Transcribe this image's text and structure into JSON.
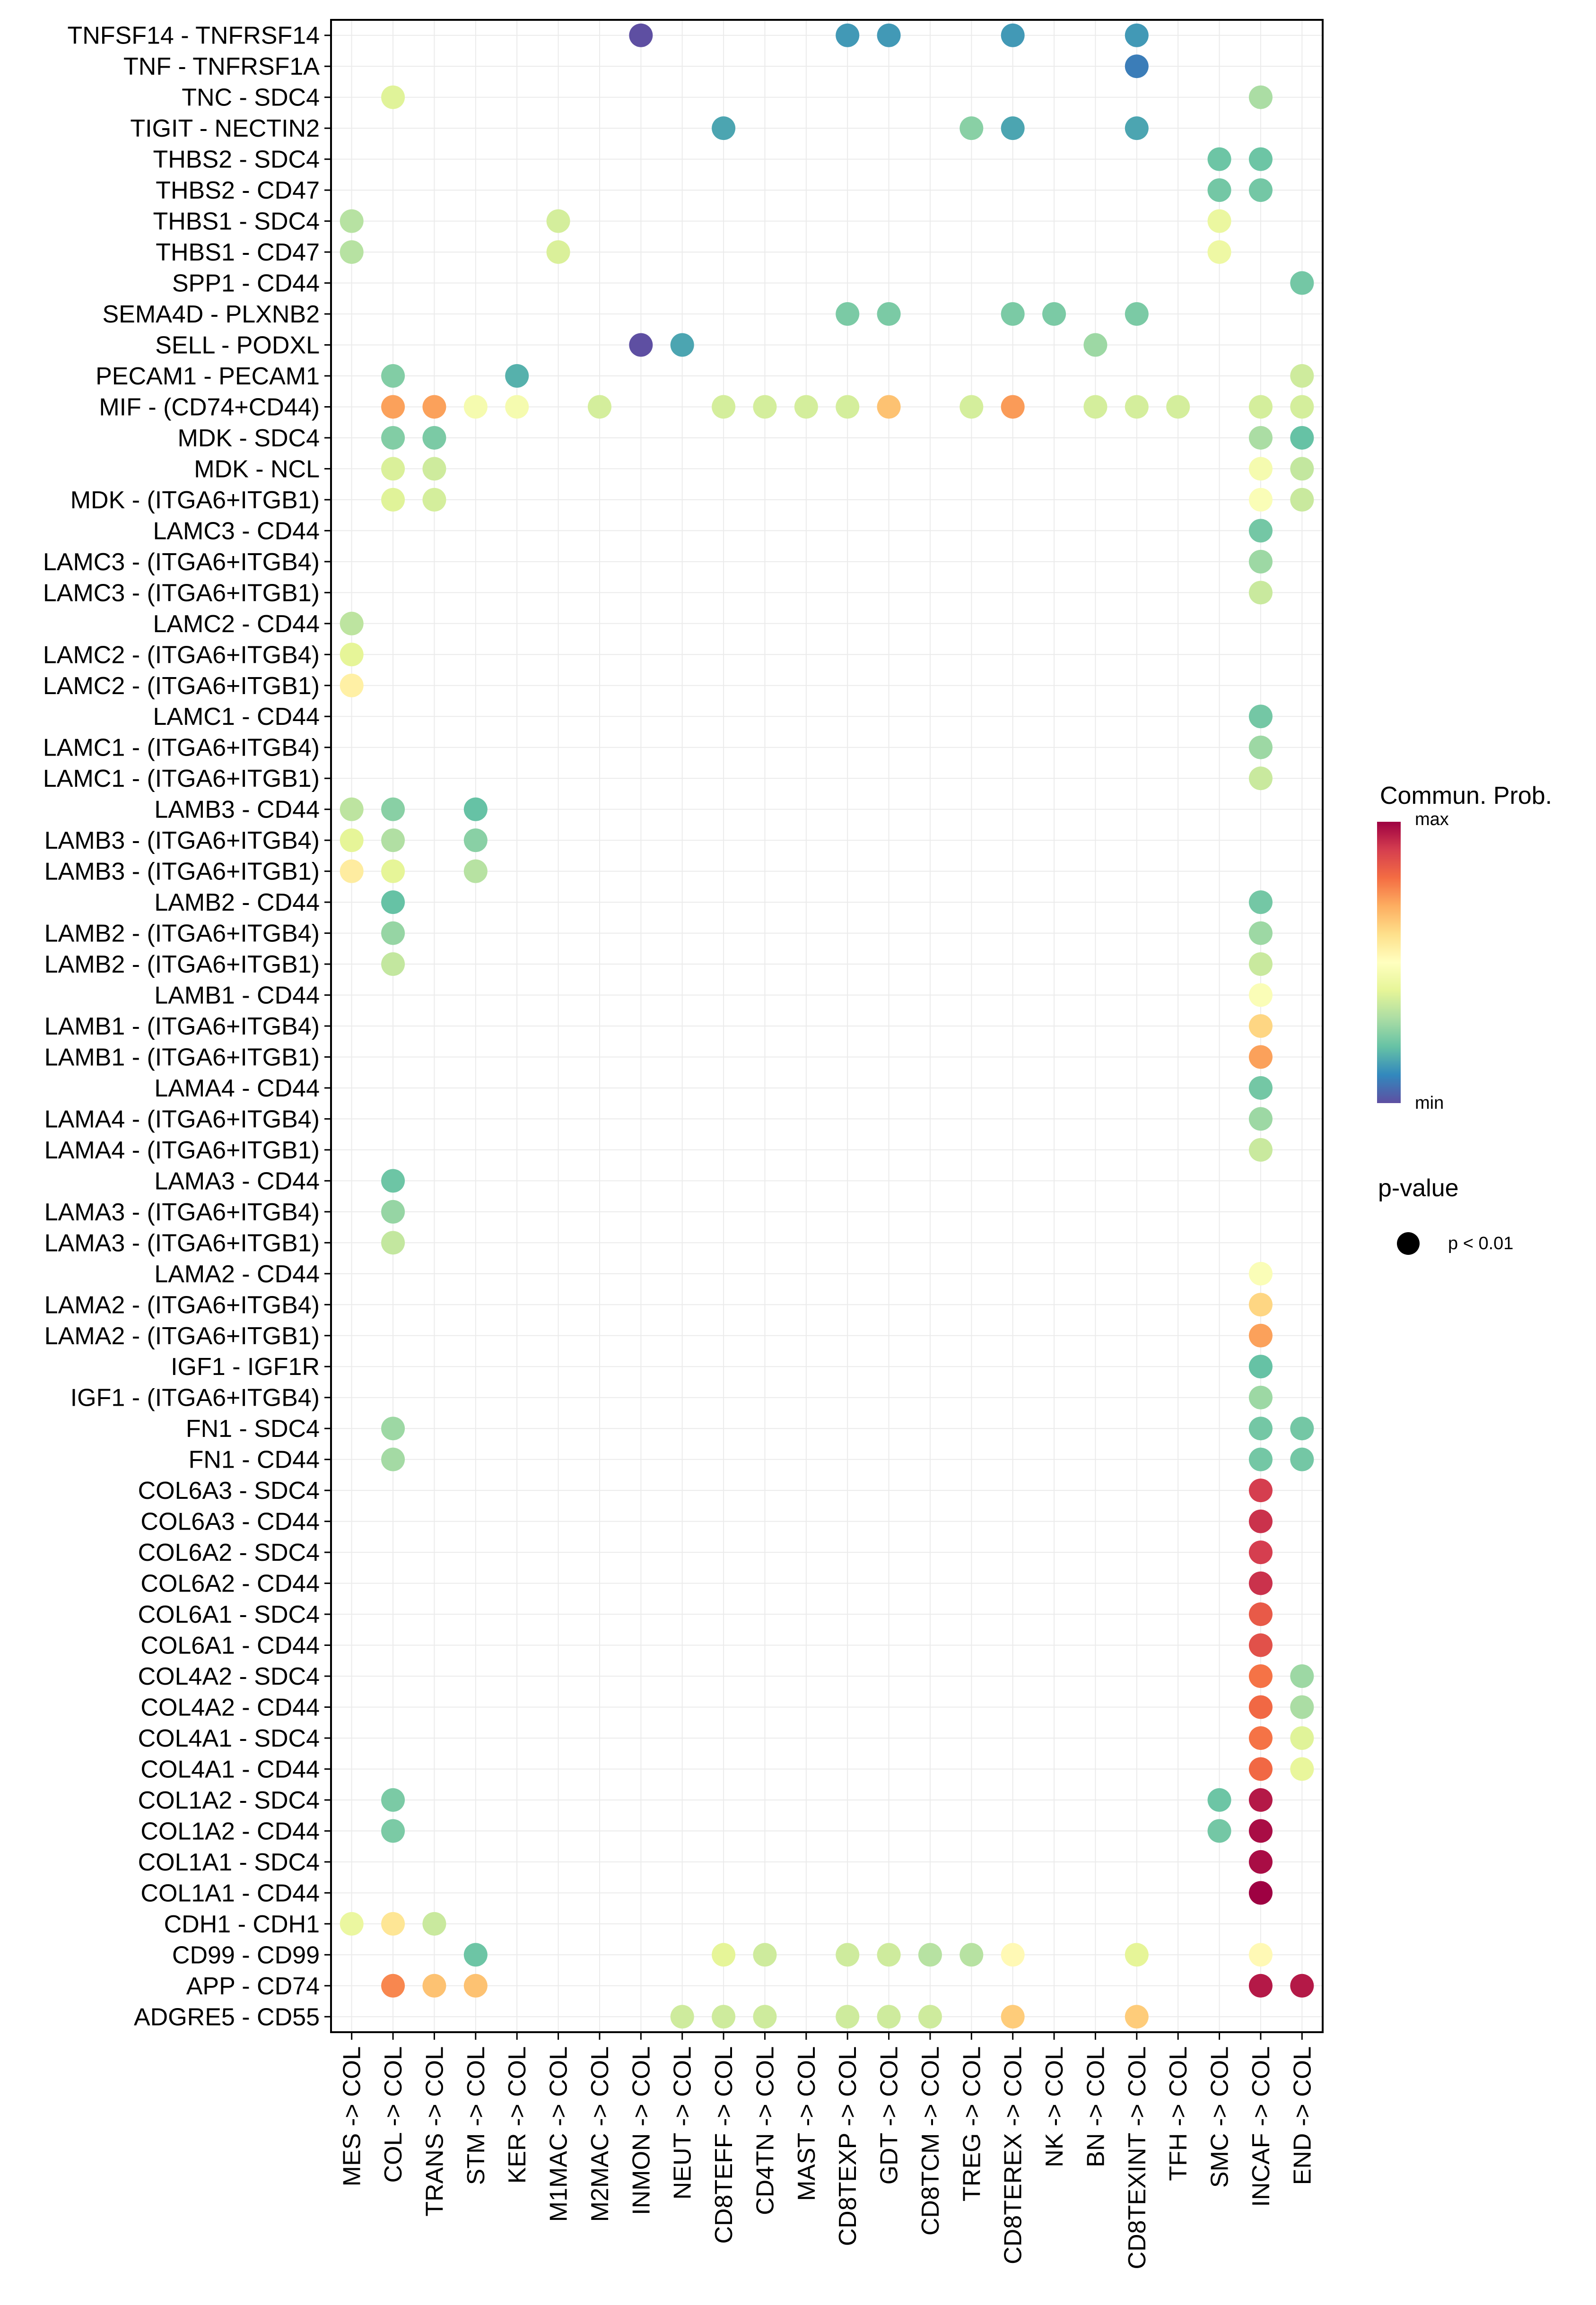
{
  "chart_data": {
    "type": "scatter",
    "subtype": "dot-plot",
    "title": "",
    "xlabel": "",
    "ylabel": "",
    "grid": true,
    "legend_placement": "right",
    "value_scale": "relative (0 = min, 1 = max), estimated from color",
    "colormap": {
      "name": "Spectral (reversed)",
      "stops": [
        "#5E4FA2",
        "#3288BD",
        "#66C2A5",
        "#ABDDA4",
        "#E6F598",
        "#FFFFBF",
        "#FEE08B",
        "#FDAE61",
        "#F46D43",
        "#D53E4F",
        "#9E0142"
      ]
    },
    "legend": {
      "color_title": "Commun. Prob.",
      "color_max_label": "max",
      "color_min_label": "min",
      "size_title": "p-value",
      "size_entry_label": "p < 0.01"
    },
    "x_categories": [
      "MES -> COL",
      "COL -> COL",
      "TRANS -> COL",
      "STM -> COL",
      "KER -> COL",
      "M1MAC -> COL",
      "M2MAC -> COL",
      "INMON -> COL",
      "NEUT -> COL",
      "CD8TEFF -> COL",
      "CD4TN -> COL",
      "MAST -> COL",
      "CD8TEXP -> COL",
      "GDT -> COL",
      "CD8TCM -> COL",
      "TREG -> COL",
      "CD8TEREX -> COL",
      "NK -> COL",
      "BN -> COL",
      "CD8TEXINT -> COL",
      "TFH -> COL",
      "SMC -> COL",
      "INCAF -> COL",
      "END -> COL"
    ],
    "y_categories": [
      "TNFSF14 - TNFRSF14",
      "TNF - TNFRSF1A",
      "TNC - SDC4",
      "TIGIT - NECTIN2",
      "THBS2 - SDC4",
      "THBS2 - CD47",
      "THBS1 - SDC4",
      "THBS1 - CD47",
      "SPP1 - CD44",
      "SEMA4D - PLXNB2",
      "SELL - PODXL",
      "PECAM1 - PECAM1",
      "MIF - (CD74+CD44)",
      "MDK - SDC4",
      "MDK - NCL",
      "MDK - (ITGA6+ITGB1)",
      "LAMC3 - CD44",
      "LAMC3 - (ITGA6+ITGB4)",
      "LAMC3 - (ITGA6+ITGB1)",
      "LAMC2 - CD44",
      "LAMC2 - (ITGA6+ITGB4)",
      "LAMC2 - (ITGA6+ITGB1)",
      "LAMC1 - CD44",
      "LAMC1 - (ITGA6+ITGB4)",
      "LAMC1 - (ITGA6+ITGB1)",
      "LAMB3 - CD44",
      "LAMB3 - (ITGA6+ITGB4)",
      "LAMB3 - (ITGA6+ITGB1)",
      "LAMB2 - CD44",
      "LAMB2 - (ITGA6+ITGB4)",
      "LAMB2 - (ITGA6+ITGB1)",
      "LAMB1 - CD44",
      "LAMB1 - (ITGA6+ITGB4)",
      "LAMB1 - (ITGA6+ITGB1)",
      "LAMA4 - CD44",
      "LAMA4 - (ITGA6+ITGB4)",
      "LAMA4 - (ITGA6+ITGB1)",
      "LAMA3 - CD44",
      "LAMA3 - (ITGA6+ITGB4)",
      "LAMA3 - (ITGA6+ITGB1)",
      "LAMA2 - CD44",
      "LAMA2 - (ITGA6+ITGB4)",
      "LAMA2 - (ITGA6+ITGB1)",
      "IGF1 - IGF1R",
      "IGF1 - (ITGA6+ITGB4)",
      "FN1 - SDC4",
      "FN1 - CD44",
      "COL6A3 - SDC4",
      "COL6A3 - CD44",
      "COL6A2 - SDC4",
      "COL6A2 - CD44",
      "COL6A1 - SDC4",
      "COL6A1 - CD44",
      "COL4A2 - SDC4",
      "COL4A2 - CD44",
      "COL4A1 - SDC4",
      "COL4A1 - CD44",
      "COL1A2 - SDC4",
      "COL1A2 - CD44",
      "COL1A1 - SDC4",
      "COL1A1 - CD44",
      "CDH1 - CDH1",
      "CD99 - CD99",
      "APP - CD74",
      "ADGRE5 - CD55"
    ],
    "points": [
      {
        "y": "TNFSF14 - TNFRSF14",
        "x": "INMON -> COL",
        "value": 0.0
      },
      {
        "y": "TNFSF14 - TNFRSF14",
        "x": "CD8TEXP -> COL",
        "value": 0.13
      },
      {
        "y": "TNFSF14 - TNFRSF14",
        "x": "GDT -> COL",
        "value": 0.13
      },
      {
        "y": "TNFSF14 - TNFRSF14",
        "x": "CD8TEREX -> COL",
        "value": 0.13
      },
      {
        "y": "TNFSF14 - TNFRSF14",
        "x": "CD8TEXINT -> COL",
        "value": 0.13
      },
      {
        "y": "TNF - TNFRSF1A",
        "x": "CD8TEXINT -> COL",
        "value": 0.08
      },
      {
        "y": "TNC - SDC4",
        "x": "COL -> COL",
        "value": 0.39
      },
      {
        "y": "TNC - SDC4",
        "x": "INCAF -> COL",
        "value": 0.3
      },
      {
        "y": "TIGIT - NECTIN2",
        "x": "CD8TEFF -> COL",
        "value": 0.15
      },
      {
        "y": "TIGIT - NECTIN2",
        "x": "TREG -> COL",
        "value": 0.25
      },
      {
        "y": "TIGIT - NECTIN2",
        "x": "CD8TEREX -> COL",
        "value": 0.15
      },
      {
        "y": "TIGIT - NECTIN2",
        "x": "CD8TEXINT -> COL",
        "value": 0.15
      },
      {
        "y": "THBS2 - SDC4",
        "x": "SMC -> COL",
        "value": 0.21
      },
      {
        "y": "THBS2 - SDC4",
        "x": "INCAF -> COL",
        "value": 0.21
      },
      {
        "y": "THBS2 - CD47",
        "x": "SMC -> COL",
        "value": 0.22
      },
      {
        "y": "THBS2 - CD47",
        "x": "INCAF -> COL",
        "value": 0.22
      },
      {
        "y": "THBS1 - SDC4",
        "x": "MES -> COL",
        "value": 0.32
      },
      {
        "y": "THBS1 - SDC4",
        "x": "M1MAC -> COL",
        "value": 0.37
      },
      {
        "y": "THBS1 - SDC4",
        "x": "SMC -> COL",
        "value": 0.42
      },
      {
        "y": "THBS1 - CD47",
        "x": "MES -> COL",
        "value": 0.32
      },
      {
        "y": "THBS1 - CD47",
        "x": "M1MAC -> COL",
        "value": 0.38
      },
      {
        "y": "THBS1 - CD47",
        "x": "SMC -> COL",
        "value": 0.43
      },
      {
        "y": "SPP1 - CD44",
        "x": "END -> COL",
        "value": 0.22
      },
      {
        "y": "SEMA4D - PLXNB2",
        "x": "CD8TEXP -> COL",
        "value": 0.23
      },
      {
        "y": "SEMA4D - PLXNB2",
        "x": "GDT -> COL",
        "value": 0.23
      },
      {
        "y": "SEMA4D - PLXNB2",
        "x": "CD8TEREX -> COL",
        "value": 0.23
      },
      {
        "y": "SEMA4D - PLXNB2",
        "x": "NK -> COL",
        "value": 0.23
      },
      {
        "y": "SEMA4D - PLXNB2",
        "x": "CD8TEXINT -> COL",
        "value": 0.23
      },
      {
        "y": "SELL - PODXL",
        "x": "INMON -> COL",
        "value": 0.0
      },
      {
        "y": "SELL - PODXL",
        "x": "NEUT -> COL",
        "value": 0.15
      },
      {
        "y": "SELL - PODXL",
        "x": "BN -> COL",
        "value": 0.28
      },
      {
        "y": "PECAM1 - PECAM1",
        "x": "COL -> COL",
        "value": 0.24
      },
      {
        "y": "PECAM1 - PECAM1",
        "x": "KER -> COL",
        "value": 0.17
      },
      {
        "y": "PECAM1 - PECAM1",
        "x": "END -> COL",
        "value": 0.36
      },
      {
        "y": "MIF - (CD74+CD44)",
        "x": "COL -> COL",
        "value": 0.72
      },
      {
        "y": "MIF - (CD74+CD44)",
        "x": "TRANS -> COL",
        "value": 0.72
      },
      {
        "y": "MIF - (CD74+CD44)",
        "x": "STM -> COL",
        "value": 0.46
      },
      {
        "y": "MIF - (CD74+CD44)",
        "x": "KER -> COL",
        "value": 0.46
      },
      {
        "y": "MIF - (CD74+CD44)",
        "x": "M2MAC -> COL",
        "value": 0.37
      },
      {
        "y": "MIF - (CD74+CD44)",
        "x": "CD8TEFF -> COL",
        "value": 0.37
      },
      {
        "y": "MIF - (CD74+CD44)",
        "x": "CD4TN -> COL",
        "value": 0.37
      },
      {
        "y": "MIF - (CD74+CD44)",
        "x": "MAST -> COL",
        "value": 0.37
      },
      {
        "y": "MIF - (CD74+CD44)",
        "x": "CD8TEXP -> COL",
        "value": 0.37
      },
      {
        "y": "MIF - (CD74+CD44)",
        "x": "GDT -> COL",
        "value": 0.66
      },
      {
        "y": "MIF - (CD74+CD44)",
        "x": "TREG -> COL",
        "value": 0.37
      },
      {
        "y": "MIF - (CD74+CD44)",
        "x": "CD8TEREX -> COL",
        "value": 0.73
      },
      {
        "y": "MIF - (CD74+CD44)",
        "x": "BN -> COL",
        "value": 0.37
      },
      {
        "y": "MIF - (CD74+CD44)",
        "x": "CD8TEXINT -> COL",
        "value": 0.37
      },
      {
        "y": "MIF - (CD74+CD44)",
        "x": "TFH -> COL",
        "value": 0.37
      },
      {
        "y": "MIF - (CD74+CD44)",
        "x": "INCAF -> COL",
        "value": 0.37
      },
      {
        "y": "MIF - (CD74+CD44)",
        "x": "END -> COL",
        "value": 0.37
      },
      {
        "y": "MDK - SDC4",
        "x": "COL -> COL",
        "value": 0.24
      },
      {
        "y": "MDK - SDC4",
        "x": "TRANS -> COL",
        "value": 0.23
      },
      {
        "y": "MDK - SDC4",
        "x": "INCAF -> COL",
        "value": 0.3
      },
      {
        "y": "MDK - SDC4",
        "x": "END -> COL",
        "value": 0.2
      },
      {
        "y": "MDK - NCL",
        "x": "COL -> COL",
        "value": 0.38
      },
      {
        "y": "MDK - NCL",
        "x": "TRANS -> COL",
        "value": 0.36
      },
      {
        "y": "MDK - NCL",
        "x": "INCAF -> COL",
        "value": 0.46
      },
      {
        "y": "MDK - NCL",
        "x": "END -> COL",
        "value": 0.34
      },
      {
        "y": "MDK - (ITGA6+ITGB1)",
        "x": "COL -> COL",
        "value": 0.39
      },
      {
        "y": "MDK - (ITGA6+ITGB1)",
        "x": "TRANS -> COL",
        "value": 0.37
      },
      {
        "y": "MDK - (ITGA6+ITGB1)",
        "x": "INCAF -> COL",
        "value": 0.48
      },
      {
        "y": "MDK - (ITGA6+ITGB1)",
        "x": "END -> COL",
        "value": 0.35
      },
      {
        "y": "LAMC3 - CD44",
        "x": "INCAF -> COL",
        "value": 0.22
      },
      {
        "y": "LAMC3 - (ITGA6+ITGB4)",
        "x": "INCAF -> COL",
        "value": 0.28
      },
      {
        "y": "LAMC3 - (ITGA6+ITGB1)",
        "x": "INCAF -> COL",
        "value": 0.35
      },
      {
        "y": "LAMC2 - CD44",
        "x": "MES -> COL",
        "value": 0.33
      },
      {
        "y": "LAMC2 - (ITGA6+ITGB4)",
        "x": "MES -> COL",
        "value": 0.4
      },
      {
        "y": "LAMC2 - (ITGA6+ITGB1)",
        "x": "MES -> COL",
        "value": 0.55
      },
      {
        "y": "LAMC1 - CD44",
        "x": "INCAF -> COL",
        "value": 0.22
      },
      {
        "y": "LAMC1 - (ITGA6+ITGB4)",
        "x": "INCAF -> COL",
        "value": 0.28
      },
      {
        "y": "LAMC1 - (ITGA6+ITGB1)",
        "x": "INCAF -> COL",
        "value": 0.35
      },
      {
        "y": "LAMB3 - CD44",
        "x": "MES -> COL",
        "value": 0.33
      },
      {
        "y": "LAMB3 - CD44",
        "x": "COL -> COL",
        "value": 0.25
      },
      {
        "y": "LAMB3 - CD44",
        "x": "STM -> COL",
        "value": 0.2
      },
      {
        "y": "LAMB3 - (ITGA6+ITGB4)",
        "x": "MES -> COL",
        "value": 0.4
      },
      {
        "y": "LAMB3 - (ITGA6+ITGB4)",
        "x": "COL -> COL",
        "value": 0.31
      },
      {
        "y": "LAMB3 - (ITGA6+ITGB4)",
        "x": "STM -> COL",
        "value": 0.25
      },
      {
        "y": "LAMB3 - (ITGA6+ITGB1)",
        "x": "MES -> COL",
        "value": 0.56
      },
      {
        "y": "LAMB3 - (ITGA6+ITGB1)",
        "x": "COL -> COL",
        "value": 0.4
      },
      {
        "y": "LAMB3 - (ITGA6+ITGB1)",
        "x": "STM -> COL",
        "value": 0.32
      },
      {
        "y": "LAMB2 - CD44",
        "x": "COL -> COL",
        "value": 0.2
      },
      {
        "y": "LAMB2 - (ITGA6+ITGB4)",
        "x": "COL -> COL",
        "value": 0.27
      },
      {
        "y": "LAMB2 - (ITGA6+ITGB1)",
        "x": "COL -> COL",
        "value": 0.34
      },
      {
        "y": "LAMB2 - CD44",
        "x": "INCAF -> COL",
        "value": 0.22
      },
      {
        "y": "LAMB2 - (ITGA6+ITGB4)",
        "x": "INCAF -> COL",
        "value": 0.28
      },
      {
        "y": "LAMB2 - (ITGA6+ITGB1)",
        "x": "INCAF -> COL",
        "value": 0.35
      },
      {
        "y": "LAMB1 - CD44",
        "x": "INCAF -> COL",
        "value": 0.48
      },
      {
        "y": "LAMB1 - (ITGA6+ITGB4)",
        "x": "INCAF -> COL",
        "value": 0.62
      },
      {
        "y": "LAMB1 - (ITGA6+ITGB1)",
        "x": "INCAF -> COL",
        "value": 0.72
      },
      {
        "y": "LAMA4 - CD44",
        "x": "INCAF -> COL",
        "value": 0.22
      },
      {
        "y": "LAMA4 - (ITGA6+ITGB4)",
        "x": "INCAF -> COL",
        "value": 0.28
      },
      {
        "y": "LAMA4 - (ITGA6+ITGB1)",
        "x": "INCAF -> COL",
        "value": 0.35
      },
      {
        "y": "LAMA3 - CD44",
        "x": "COL -> COL",
        "value": 0.21
      },
      {
        "y": "LAMA3 - (ITGA6+ITGB4)",
        "x": "COL -> COL",
        "value": 0.27
      },
      {
        "y": "LAMA3 - (ITGA6+ITGB1)",
        "x": "COL -> COL",
        "value": 0.34
      },
      {
        "y": "LAMA2 - CD44",
        "x": "INCAF -> COL",
        "value": 0.48
      },
      {
        "y": "LAMA2 - (ITGA6+ITGB4)",
        "x": "INCAF -> COL",
        "value": 0.62
      },
      {
        "y": "LAMA2 - (ITGA6+ITGB1)",
        "x": "INCAF -> COL",
        "value": 0.72
      },
      {
        "y": "IGF1 - IGF1R",
        "x": "INCAF -> COL",
        "value": 0.2
      },
      {
        "y": "IGF1 - (ITGA6+ITGB4)",
        "x": "INCAF -> COL",
        "value": 0.28
      },
      {
        "y": "FN1 - SDC4",
        "x": "COL -> COL",
        "value": 0.28
      },
      {
        "y": "FN1 - SDC4",
        "x": "INCAF -> COL",
        "value": 0.22
      },
      {
        "y": "FN1 - SDC4",
        "x": "END -> COL",
        "value": 0.22
      },
      {
        "y": "FN1 - CD44",
        "x": "COL -> COL",
        "value": 0.29
      },
      {
        "y": "FN1 - CD44",
        "x": "INCAF -> COL",
        "value": 0.22
      },
      {
        "y": "FN1 - CD44",
        "x": "END -> COL",
        "value": 0.22
      },
      {
        "y": "COL6A3 - SDC4",
        "x": "INCAF -> COL",
        "value": 0.9
      },
      {
        "y": "COL6A3 - CD44",
        "x": "INCAF -> COL",
        "value": 0.92
      },
      {
        "y": "COL6A2 - SDC4",
        "x": "INCAF -> COL",
        "value": 0.9
      },
      {
        "y": "COL6A2 - CD44",
        "x": "INCAF -> COL",
        "value": 0.92
      },
      {
        "y": "COL6A1 - SDC4",
        "x": "INCAF -> COL",
        "value": 0.84
      },
      {
        "y": "COL6A1 - CD44",
        "x": "INCAF -> COL",
        "value": 0.86
      },
      {
        "y": "COL4A2 - SDC4",
        "x": "INCAF -> COL",
        "value": 0.79
      },
      {
        "y": "COL4A2 - SDC4",
        "x": "END -> COL",
        "value": 0.28
      },
      {
        "y": "COL4A2 - CD44",
        "x": "INCAF -> COL",
        "value": 0.81
      },
      {
        "y": "COL4A2 - CD44",
        "x": "END -> COL",
        "value": 0.3
      },
      {
        "y": "COL4A1 - SDC4",
        "x": "INCAF -> COL",
        "value": 0.79
      },
      {
        "y": "COL4A1 - SDC4",
        "x": "END -> COL",
        "value": 0.39
      },
      {
        "y": "COL4A1 - CD44",
        "x": "INCAF -> COL",
        "value": 0.81
      },
      {
        "y": "COL4A1 - CD44",
        "x": "END -> COL",
        "value": 0.41
      },
      {
        "y": "COL1A2 - SDC4",
        "x": "COL -> COL",
        "value": 0.23
      },
      {
        "y": "COL1A2 - SDC4",
        "x": "SMC -> COL",
        "value": 0.21
      },
      {
        "y": "COL1A2 - SDC4",
        "x": "INCAF -> COL",
        "value": 0.96
      },
      {
        "y": "COL1A2 - CD44",
        "x": "COL -> COL",
        "value": 0.23
      },
      {
        "y": "COL1A2 - CD44",
        "x": "SMC -> COL",
        "value": 0.22
      },
      {
        "y": "COL1A2 - CD44",
        "x": "INCAF -> COL",
        "value": 0.98
      },
      {
        "y": "COL1A1 - SDC4",
        "x": "INCAF -> COL",
        "value": 0.98
      },
      {
        "y": "COL1A1 - CD44",
        "x": "INCAF -> COL",
        "value": 1.0
      },
      {
        "y": "CDH1 - CDH1",
        "x": "MES -> COL",
        "value": 0.42
      },
      {
        "y": "CDH1 - CDH1",
        "x": "COL -> COL",
        "value": 0.58
      },
      {
        "y": "CDH1 - CDH1",
        "x": "TRANS -> COL",
        "value": 0.35
      },
      {
        "y": "CD99 - CD99",
        "x": "STM -> COL",
        "value": 0.21
      },
      {
        "y": "CD99 - CD99",
        "x": "CD8TEFF -> COL",
        "value": 0.4
      },
      {
        "y": "CD99 - CD99",
        "x": "CD4TN -> COL",
        "value": 0.36
      },
      {
        "y": "CD99 - CD99",
        "x": "CD8TEXP -> COL",
        "value": 0.36
      },
      {
        "y": "CD99 - CD99",
        "x": "GDT -> COL",
        "value": 0.36
      },
      {
        "y": "CD99 - CD99",
        "x": "CD8TCM -> COL",
        "value": 0.32
      },
      {
        "y": "CD99 - CD99",
        "x": "TREG -> COL",
        "value": 0.32
      },
      {
        "y": "CD99 - CD99",
        "x": "CD8TEREX -> COL",
        "value": 0.52
      },
      {
        "y": "CD99 - CD99",
        "x": "CD8TEXINT -> COL",
        "value": 0.4
      },
      {
        "y": "CD99 - CD99",
        "x": "INCAF -> COL",
        "value": 0.52
      },
      {
        "y": "APP - CD74",
        "x": "COL -> COL",
        "value": 0.76
      },
      {
        "y": "APP - CD74",
        "x": "TRANS -> COL",
        "value": 0.66
      },
      {
        "y": "APP - CD74",
        "x": "STM -> COL",
        "value": 0.66
      },
      {
        "y": "APP - CD74",
        "x": "INCAF -> COL",
        "value": 0.96
      },
      {
        "y": "APP - CD74",
        "x": "END -> COL",
        "value": 0.96
      },
      {
        "y": "ADGRE5 - CD55",
        "x": "NEUT -> COL",
        "value": 0.36
      },
      {
        "y": "ADGRE5 - CD55",
        "x": "CD8TEFF -> COL",
        "value": 0.36
      },
      {
        "y": "ADGRE5 - CD55",
        "x": "CD4TN -> COL",
        "value": 0.36
      },
      {
        "y": "ADGRE5 - CD55",
        "x": "CD8TEXP -> COL",
        "value": 0.36
      },
      {
        "y": "ADGRE5 - CD55",
        "x": "GDT -> COL",
        "value": 0.36
      },
      {
        "y": "ADGRE5 - CD55",
        "x": "CD8TCM -> COL",
        "value": 0.36
      },
      {
        "y": "ADGRE5 - CD55",
        "x": "CD8TEREX -> COL",
        "value": 0.64
      },
      {
        "y": "ADGRE5 - CD55",
        "x": "CD8TEXINT -> COL",
        "value": 0.64
      }
    ]
  }
}
